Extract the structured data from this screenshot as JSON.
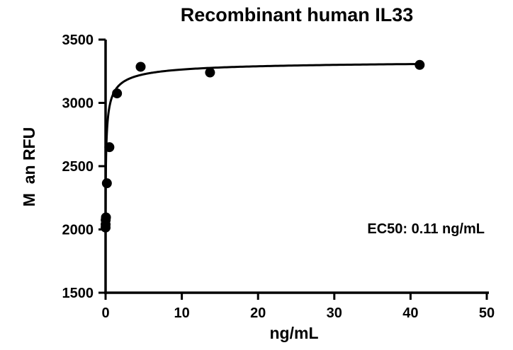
{
  "chart_data": {
    "type": "scatter",
    "title": "Recombinant human IL33",
    "xlabel": "ng/mL",
    "ylabel": "M  an RFU",
    "xlim": [
      0,
      50
    ],
    "ylim": [
      1500,
      3500
    ],
    "x_ticks": [
      "0",
      "10",
      "20",
      "30",
      "40",
      "50"
    ],
    "y_ticks": [
      "1500",
      "2000",
      "2500",
      "3000",
      "3500"
    ],
    "grid": false,
    "annotation": "EC50: 0.11 ng/mL",
    "series": [
      {
        "points": [
          {
            "x": 0.001,
            "y": 2015
          },
          {
            "x": 0.005,
            "y": 2040
          },
          {
            "x": 0.015,
            "y": 2075
          },
          {
            "x": 0.05,
            "y": 2095
          },
          {
            "x": 0.17,
            "y": 2365
          },
          {
            "x": 0.5,
            "y": 2650
          },
          {
            "x": 1.5,
            "y": 3075
          },
          {
            "x": 4.6,
            "y": 3285
          },
          {
            "x": 13.7,
            "y": 3240
          },
          {
            "x": 41.2,
            "y": 3300
          }
        ],
        "fit": {
          "model": "4PL",
          "bottom": 2010,
          "top": 3340,
          "ec50": 0.11,
          "hill": 0.62
        }
      }
    ]
  }
}
